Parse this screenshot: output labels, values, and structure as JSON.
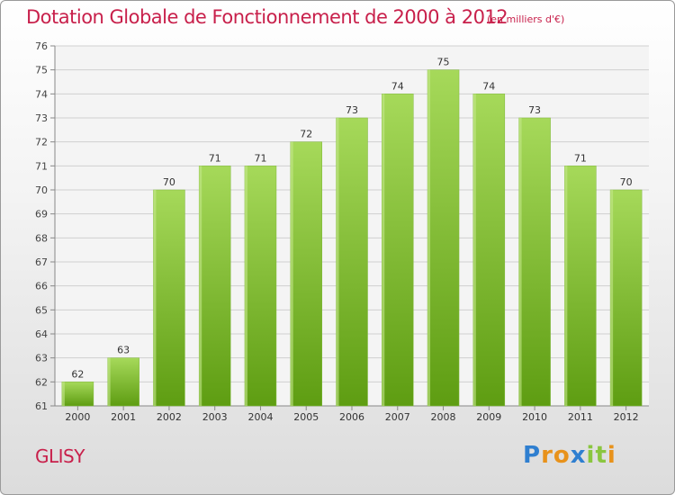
{
  "header": {
    "title": "Dotation Globale de Fonctionnement de 2000 à 2012",
    "unit": "(en milliers d'€)"
  },
  "footer": {
    "commune": "GLISY",
    "logo_text": "Proxiti"
  },
  "colors": {
    "title": "#c8204b",
    "bar_light": "#a6d95a",
    "bar_dark": "#5e9d12",
    "grid": "#d0d0d0"
  },
  "chart_data": {
    "type": "bar",
    "title": "Dotation Globale de Fonctionnement de 2000 à 2012",
    "subtitle": "(en milliers d'€)",
    "categories": [
      "2000",
      "2001",
      "2002",
      "2003",
      "2004",
      "2005",
      "2006",
      "2007",
      "2008",
      "2009",
      "2010",
      "2011",
      "2012"
    ],
    "values": [
      62,
      63,
      70,
      71,
      71,
      72,
      73,
      74,
      75,
      74,
      73,
      71,
      70
    ],
    "ylim": [
      61,
      76
    ],
    "yticks": [
      61,
      62,
      63,
      64,
      65,
      66,
      67,
      68,
      69,
      70,
      71,
      72,
      73,
      74,
      75,
      76
    ],
    "grid": true,
    "data_labels": true
  }
}
